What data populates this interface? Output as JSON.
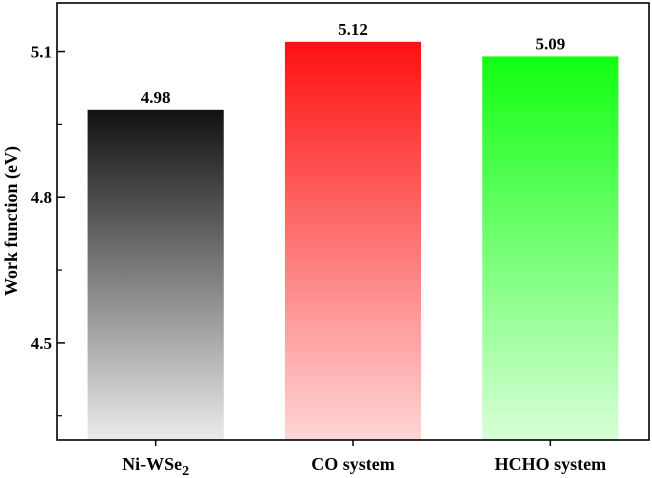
{
  "chart_data": {
    "type": "bar",
    "ylabel": "Work function (eV)",
    "ylim": [
      4.3,
      5.2
    ],
    "yticks": [
      "4.5",
      "4.8",
      "5.1"
    ],
    "grid": false,
    "legend": "none",
    "categories": [
      {
        "main": "Ni-WSe",
        "sub": "2"
      },
      {
        "main": "CO system",
        "sub": ""
      },
      {
        "main": "HCHO system",
        "sub": ""
      }
    ],
    "values": [
      4.98,
      5.12,
      5.09
    ],
    "data_labels": [
      "4.98",
      "5.12",
      "5.09"
    ],
    "colors": [
      {
        "top": "#111111",
        "bottom": "#ebebeb"
      },
      {
        "top": "#ff1111",
        "bottom": "#ffd6d6"
      },
      {
        "top": "#11ff11",
        "bottom": "#d8ffd8"
      }
    ]
  }
}
